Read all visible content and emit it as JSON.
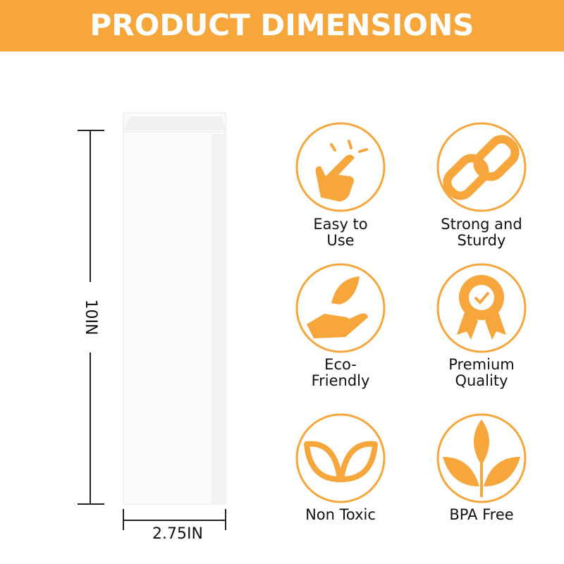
{
  "header": {
    "title": "PRODUCT DIMENSIONS"
  },
  "dimensions": {
    "height": "10IN",
    "width": "2.75IN"
  },
  "features": [
    {
      "lines": [
        "Easy to",
        "Use"
      ]
    },
    {
      "lines": [
        "Strong and",
        "Sturdy"
      ]
    },
    {
      "lines": [
        "Eco-",
        "Friendly"
      ]
    },
    {
      "lines": [
        "Premium",
        "Quality"
      ]
    },
    {
      "lines": [
        "Non Toxic"
      ]
    },
    {
      "lines": [
        "BPA Free"
      ]
    }
  ]
}
